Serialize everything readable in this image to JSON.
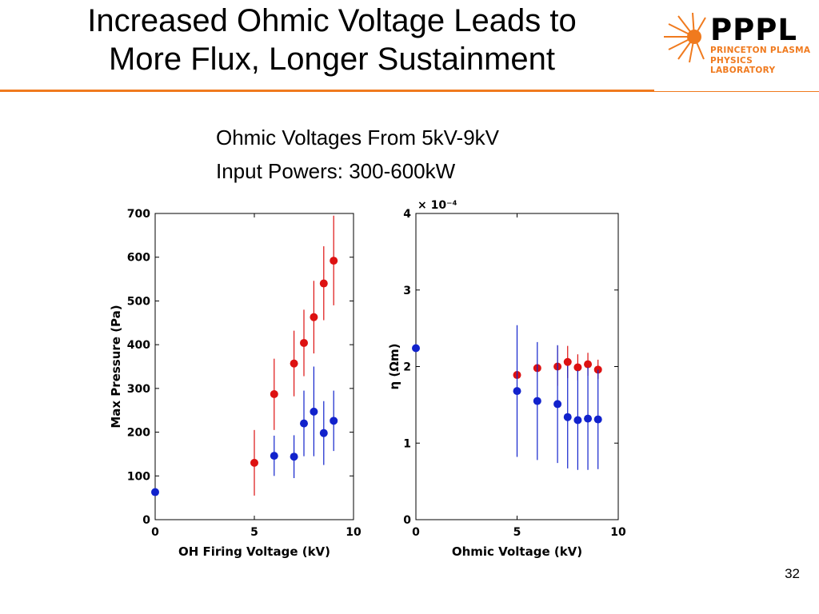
{
  "slide": {
    "title_line1": "Increased Ohmic Voltage Leads to",
    "title_line2": "More Flux, Longer Sustainment",
    "subtitle_line1": "Ohmic Voltages From 5kV-9kV",
    "subtitle_line2": "Input Powers: 300-600kW",
    "page_number": "32",
    "accent_color": "#f07a1e"
  },
  "logo": {
    "word": "PPPL",
    "line1": "PRINCETON PLASMA",
    "line2": "PHYSICS LABORATORY",
    "icon": "starburst-icon"
  },
  "chart_data": [
    {
      "type": "scatter",
      "xlabel": "OH Firing Voltage (kV)",
      "ylabel": "Max Pressure (Pa)",
      "xlim": [
        0,
        10
      ],
      "ylim": [
        0,
        700
      ],
      "xticks": [
        0,
        5,
        10
      ],
      "yticks": [
        0,
        100,
        200,
        300,
        400,
        500,
        600,
        700
      ],
      "grid": false,
      "series": [
        {
          "color": "#dd1111",
          "points": [
            {
              "x": 5,
              "y": 130,
              "lo": 55,
              "hi": 205
            },
            {
              "x": 6,
              "y": 287,
              "lo": 205,
              "hi": 368
            },
            {
              "x": 7,
              "y": 357,
              "lo": 282,
              "hi": 432
            },
            {
              "x": 7.5,
              "y": 404,
              "lo": 328,
              "hi": 480
            },
            {
              "x": 8,
              "y": 463,
              "lo": 380,
              "hi": 546
            },
            {
              "x": 8.5,
              "y": 540,
              "lo": 456,
              "hi": 625
            },
            {
              "x": 9,
              "y": 592,
              "lo": 490,
              "hi": 695
            }
          ]
        },
        {
          "color": "#1122cc",
          "points": [
            {
              "x": 0,
              "y": 63
            },
            {
              "x": 6,
              "y": 146,
              "lo": 100,
              "hi": 192
            },
            {
              "x": 7,
              "y": 144,
              "lo": 95,
              "hi": 193
            },
            {
              "x": 7.5,
              "y": 220,
              "lo": 145,
              "hi": 295
            },
            {
              "x": 8,
              "y": 247,
              "lo": 145,
              "hi": 350
            },
            {
              "x": 8.5,
              "y": 198,
              "lo": 125,
              "hi": 271
            },
            {
              "x": 9,
              "y": 226,
              "lo": 157,
              "hi": 295
            }
          ]
        }
      ]
    },
    {
      "type": "scatter",
      "xlabel": "Ohmic Voltage (kV)",
      "ylabel": "η (Ωm)",
      "y_exponent_label": "× 10⁻⁴",
      "xlim": [
        0,
        10
      ],
      "ylim": [
        0,
        4
      ],
      "xticks": [
        0,
        5,
        10
      ],
      "yticks": [
        0,
        1,
        2,
        3,
        4
      ],
      "grid": false,
      "series": [
        {
          "color": "#dd1111",
          "points": [
            {
              "x": 5,
              "y": 1.89
            },
            {
              "x": 6,
              "y": 1.98
            },
            {
              "x": 7,
              "y": 2.0,
              "lo": 1.75,
              "hi": 2.27
            },
            {
              "x": 7.5,
              "y": 2.06,
              "lo": 1.85,
              "hi": 2.27
            },
            {
              "x": 8,
              "y": 1.99,
              "lo": 1.82,
              "hi": 2.16
            },
            {
              "x": 8.5,
              "y": 2.03,
              "lo": 1.88,
              "hi": 2.18
            },
            {
              "x": 9,
              "y": 1.96,
              "lo": 1.84,
              "hi": 2.09
            }
          ]
        },
        {
          "color": "#1122cc",
          "points": [
            {
              "x": 0,
              "y": 2.24
            },
            {
              "x": 5,
              "y": 1.68,
              "lo": 0.82,
              "hi": 2.54
            },
            {
              "x": 6,
              "y": 1.55,
              "lo": 0.78,
              "hi": 2.32
            },
            {
              "x": 7,
              "y": 1.51,
              "lo": 0.74,
              "hi": 2.28
            },
            {
              "x": 7.5,
              "y": 1.34,
              "lo": 0.67,
              "hi": 2.01
            },
            {
              "x": 8,
              "y": 1.3,
              "lo": 0.65,
              "hi": 1.95
            },
            {
              "x": 8.5,
              "y": 1.32,
              "lo": 0.65,
              "hi": 1.99
            },
            {
              "x": 9,
              "y": 1.31,
              "lo": 0.66,
              "hi": 1.96
            }
          ]
        }
      ]
    }
  ]
}
